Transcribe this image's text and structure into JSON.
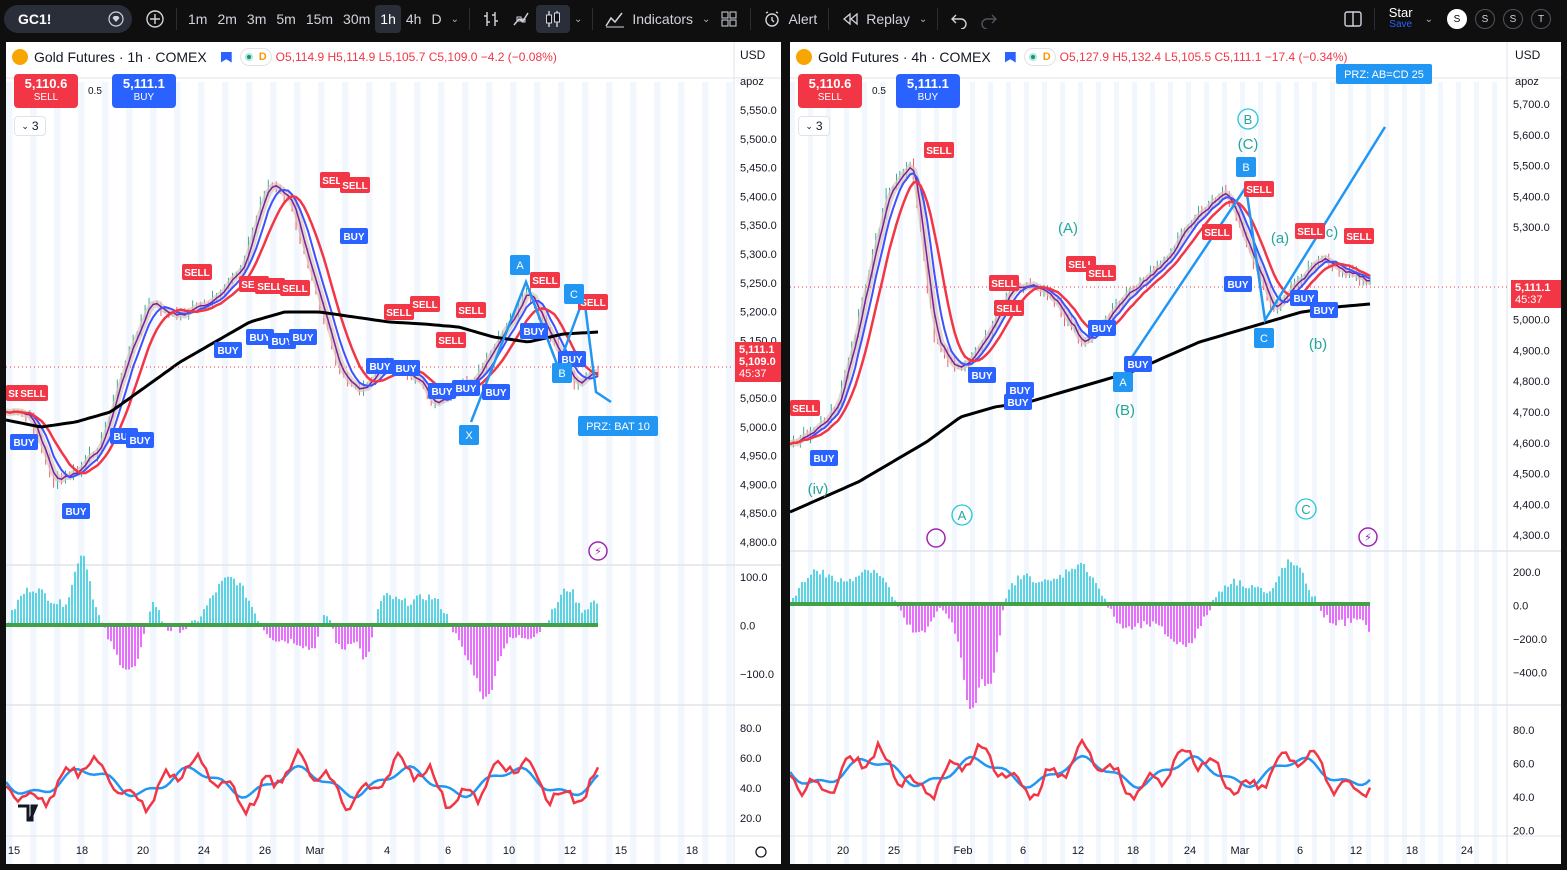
{
  "toolbar": {
    "symbol": "GC1!",
    "intervals": [
      "1m",
      "2m",
      "3m",
      "5m",
      "15m",
      "30m",
      "1h",
      "4h",
      "D"
    ],
    "active_interval": "1h",
    "indicators_label": "Indicators",
    "alert_label": "Alert",
    "replay_label": "Replay",
    "layout_name": "Star",
    "layout_status": "Save",
    "avatars": [
      "S",
      "S",
      "S",
      "T"
    ]
  },
  "left_chart": {
    "title": "Gold Futures · 1h · COMEX",
    "ohlc": {
      "o": "O5,114.9",
      "h": "H5,114.9",
      "l": "L5,105.7",
      "c": "C5,109.0",
      "chg": "−4.2 (−0.08%)"
    },
    "sell_price": "5,110.6",
    "sell_label": "SELL",
    "buy_price": "5,111.1",
    "buy_label": "BUY",
    "spread": "0.5",
    "collapse_count": "3",
    "currency": "USD",
    "scale_mode": "apoz",
    "price_labels": [
      "5,550.0",
      "5,500.0",
      "5,450.0",
      "5,400.0",
      "5,350.0",
      "5,300.0",
      "5,250.0",
      "5,200.0",
      "5,150.0",
      "5,050.0",
      "5,000.0",
      "4,950.0",
      "4,900.0",
      "4,850.0",
      "4,800.0"
    ],
    "price_badge": {
      "last": "5,111.1",
      "close": "5,109.0",
      "countdown": "45:37"
    },
    "osc_labels": [
      "100.0",
      "0.0",
      "−100.0"
    ],
    "rsi_labels": [
      "80.0",
      "60.0",
      "40.0",
      "20.0"
    ],
    "date_labels": [
      "15",
      "18",
      "20",
      "24",
      "26",
      "Mar",
      "4",
      "6",
      "10",
      "12",
      "15",
      "18"
    ],
    "prz_label": "PRZ: BAT 10",
    "pattern_points": [
      "X",
      "A",
      "B",
      "C"
    ]
  },
  "right_chart": {
    "title": "Gold Futures · 4h · COMEX",
    "ohlc": {
      "o": "O5,127.9",
      "h": "H5,132.4",
      "l": "L5,105.5",
      "c": "C5,111.1",
      "chg": "−17.4 (−0.34%)"
    },
    "sell_price": "5,110.6",
    "sell_label": "SELL",
    "buy_price": "5,111.1",
    "buy_label": "BUY",
    "spread": "0.5",
    "collapse_count": "3",
    "currency": "USD",
    "scale_mode": "apoz",
    "price_labels": [
      "5,700.0",
      "5,600.0",
      "5,500.0",
      "5,400.0",
      "5,300.0",
      "5,200.0",
      "5,000.0",
      "4,900.0",
      "4,800.0",
      "4,700.0",
      "4,600.0",
      "4,500.0",
      "4,400.0",
      "4,300.0"
    ],
    "price_badge": {
      "last": "5,111.1",
      "countdown": "45:37"
    },
    "osc_labels": [
      "200.0",
      "0.0",
      "−200.0",
      "−400.0"
    ],
    "rsi_labels": [
      "80.0",
      "60.0",
      "40.0",
      "20.0"
    ],
    "date_labels": [
      "20",
      "25",
      "Feb",
      "6",
      "12",
      "18",
      "24",
      "Mar",
      "6",
      "12",
      "18",
      "24"
    ],
    "prz_label": "PRZ: AB=CD 25",
    "wave_labels": [
      "(iv)",
      "A",
      "(A)",
      "(B)",
      "B",
      "(C)",
      "(a)",
      "(b)",
      "c)",
      "C"
    ],
    "pattern_points": [
      "A",
      "B",
      "C"
    ]
  },
  "signals": {
    "sell": "SELL",
    "buy": "BUY"
  },
  "colors": {
    "sell": "#f23645",
    "buy": "#2962ff",
    "teal": "#26c6da",
    "pattern": "#2196f3",
    "ma_black": "#000000",
    "ma_red": "#f23645",
    "osc_up": "#26c6da",
    "osc_down": "#e040fb"
  }
}
